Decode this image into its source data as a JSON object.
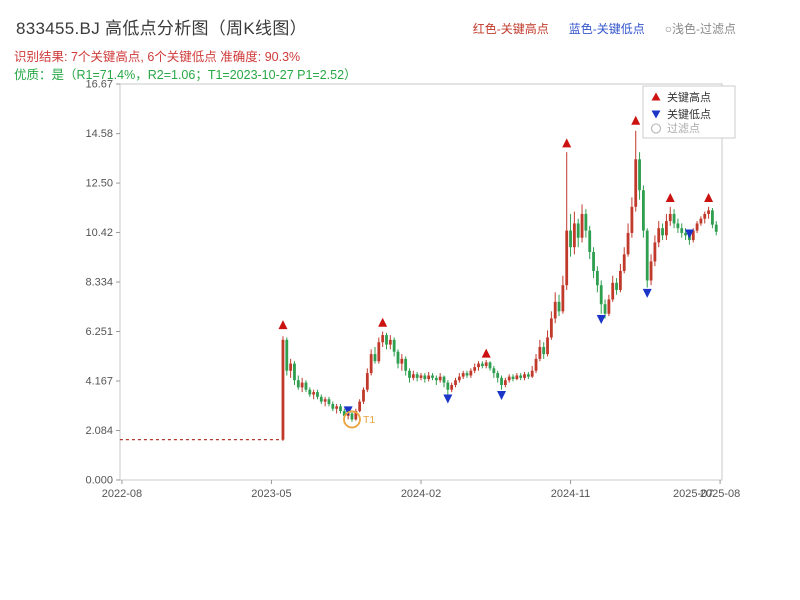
{
  "header": {
    "title": "833455.BJ 高低点分析图（周K线图）",
    "legend_top": [
      {
        "label": "红色-关键高点",
        "color": "#c0392b"
      },
      {
        "label": "蓝色-关键低点",
        "color": "#3355cc"
      },
      {
        "label": "○浅色-过滤点",
        "color": "#8a8a8a"
      }
    ],
    "result_line": "识别结果: 7个关键高点, 6个关键低点  准确度: 90.3%",
    "quality_line": "优质：是（R1=71.4%，R2=1.06；T1=2023-10-27 P1=2.52）"
  },
  "chart_data": {
    "type": "candlestick",
    "title": "833455.BJ 高低点分析图（周K线图）",
    "ylim": [
      0,
      16.67
    ],
    "grid": false,
    "legend_position": "top-right-inside",
    "y_ticks": [
      {
        "value": 0,
        "label": "0.000"
      },
      {
        "value": 2.084,
        "label": "2.084"
      },
      {
        "value": 4.167,
        "label": "4.167"
      },
      {
        "value": 6.251,
        "label": "6.251"
      },
      {
        "value": 8.334,
        "label": "8.334"
      },
      {
        "value": 10.42,
        "label": "10.42"
      },
      {
        "value": 12.5,
        "label": "12.50"
      },
      {
        "value": 14.58,
        "label": "14.58"
      },
      {
        "value": 16.67,
        "label": "16.67"
      }
    ],
    "x_ticks": [
      {
        "week": 0,
        "label": "2022-08",
        "tick": true
      },
      {
        "week": 39,
        "label": "2023-05",
        "tick": true
      },
      {
        "week": 78,
        "label": "2024-02",
        "tick": true
      },
      {
        "week": 117,
        "label": "2024-11",
        "tick": true
      },
      {
        "week": 149,
        "label": "2025-07",
        "tick": false
      },
      {
        "week": 156,
        "label": "2025-08",
        "tick": true
      }
    ],
    "flat_segment": {
      "from_week": 0,
      "to_week": 42,
      "value": 1.7
    },
    "candles": {
      "start_week": 42,
      "ohlc": [
        [
          1.7,
          6.05,
          1.65,
          5.9
        ],
        [
          5.9,
          6.0,
          4.4,
          4.6
        ],
        [
          4.6,
          5.1,
          4.3,
          4.9
        ],
        [
          4.9,
          5.0,
          4.0,
          4.2
        ],
        [
          4.2,
          4.4,
          3.8,
          3.9
        ],
        [
          3.9,
          4.3,
          3.7,
          4.1
        ],
        [
          4.1,
          4.2,
          3.7,
          3.8
        ],
        [
          3.8,
          3.9,
          3.5,
          3.6
        ],
        [
          3.6,
          3.8,
          3.4,
          3.7
        ],
        [
          3.7,
          3.8,
          3.4,
          3.5
        ],
        [
          3.5,
          3.6,
          3.2,
          3.3
        ],
        [
          3.3,
          3.5,
          3.1,
          3.4
        ],
        [
          3.4,
          3.5,
          3.1,
          3.2
        ],
        [
          3.2,
          3.3,
          2.9,
          3.0
        ],
        [
          3.0,
          3.2,
          2.8,
          3.1
        ],
        [
          3.1,
          3.2,
          2.8,
          2.9
        ],
        [
          2.9,
          3.0,
          2.6,
          2.7
        ],
        [
          2.7,
          2.9,
          2.55,
          2.8
        ],
        [
          2.8,
          2.85,
          2.45,
          2.55
        ],
        [
          2.55,
          3.0,
          2.5,
          2.9
        ],
        [
          2.9,
          3.4,
          2.85,
          3.3
        ],
        [
          3.3,
          3.9,
          3.2,
          3.8
        ],
        [
          3.8,
          4.7,
          3.7,
          4.5
        ],
        [
          4.5,
          5.5,
          4.4,
          5.3
        ],
        [
          5.3,
          5.6,
          4.9,
          5.0
        ],
        [
          5.0,
          6.0,
          4.9,
          5.8
        ],
        [
          5.8,
          6.25,
          5.6,
          6.1
        ],
        [
          6.1,
          6.2,
          5.5,
          5.7
        ],
        [
          5.7,
          6.1,
          5.5,
          5.9
        ],
        [
          5.9,
          6.0,
          5.2,
          5.4
        ],
        [
          5.4,
          5.5,
          4.7,
          4.9
        ],
        [
          4.9,
          5.3,
          4.6,
          5.1
        ],
        [
          5.1,
          5.2,
          4.4,
          4.6
        ],
        [
          4.6,
          4.7,
          4.1,
          4.3
        ],
        [
          4.3,
          4.6,
          4.2,
          4.45
        ],
        [
          4.45,
          4.55,
          4.15,
          4.3
        ],
        [
          4.3,
          4.5,
          4.2,
          4.4
        ],
        [
          4.4,
          4.5,
          4.1,
          4.25
        ],
        [
          4.25,
          4.55,
          4.15,
          4.4
        ],
        [
          4.4,
          4.5,
          4.2,
          4.3
        ],
        [
          4.3,
          4.4,
          4.0,
          4.2
        ],
        [
          4.2,
          4.5,
          4.1,
          4.35
        ],
        [
          4.35,
          4.4,
          3.9,
          4.1
        ],
        [
          4.1,
          4.2,
          3.6,
          3.8
        ],
        [
          3.8,
          4.1,
          3.7,
          4.0
        ],
        [
          4.0,
          4.3,
          3.9,
          4.2
        ],
        [
          4.2,
          4.5,
          4.1,
          4.35
        ],
        [
          4.35,
          4.6,
          4.25,
          4.5
        ],
        [
          4.5,
          4.6,
          4.3,
          4.4
        ],
        [
          4.4,
          4.7,
          4.3,
          4.6
        ],
        [
          4.6,
          4.9,
          4.5,
          4.75
        ],
        [
          4.75,
          5.0,
          4.6,
          4.9
        ],
        [
          4.9,
          5.0,
          4.7,
          4.8
        ],
        [
          4.8,
          5.05,
          4.7,
          4.95
        ],
        [
          4.95,
          5.0,
          4.6,
          4.7
        ],
        [
          4.7,
          4.8,
          4.3,
          4.5
        ],
        [
          4.5,
          4.6,
          4.1,
          4.3
        ],
        [
          4.3,
          4.4,
          3.8,
          4.0
        ],
        [
          4.0,
          4.3,
          3.9,
          4.2
        ],
        [
          4.2,
          4.45,
          4.1,
          4.35
        ],
        [
          4.35,
          4.45,
          4.15,
          4.25
        ],
        [
          4.25,
          4.5,
          4.2,
          4.4
        ],
        [
          4.4,
          4.5,
          4.2,
          4.3
        ],
        [
          4.3,
          4.55,
          4.2,
          4.45
        ],
        [
          4.45,
          4.55,
          4.25,
          4.35
        ],
        [
          4.35,
          4.8,
          4.3,
          4.6
        ],
        [
          4.6,
          5.3,
          4.5,
          5.1
        ],
        [
          5.1,
          5.9,
          5.0,
          5.6
        ],
        [
          5.6,
          5.8,
          5.1,
          5.3
        ],
        [
          5.3,
          6.3,
          5.2,
          6.0
        ],
        [
          6.0,
          7.1,
          5.9,
          6.8
        ],
        [
          6.8,
          7.9,
          6.6,
          7.5
        ],
        [
          7.5,
          7.8,
          6.9,
          7.1
        ],
        [
          7.1,
          8.6,
          7.0,
          8.2
        ],
        [
          8.2,
          13.8,
          8.0,
          10.5
        ],
        [
          10.5,
          11.2,
          9.4,
          9.8
        ],
        [
          9.8,
          11.3,
          9.5,
          10.8
        ],
        [
          10.8,
          11.0,
          9.8,
          10.2
        ],
        [
          10.2,
          11.6,
          10.0,
          11.2
        ],
        [
          11.2,
          11.4,
          10.2,
          10.5
        ],
        [
          10.5,
          10.7,
          9.3,
          9.6
        ],
        [
          9.6,
          9.8,
          8.5,
          8.8
        ],
        [
          8.8,
          9.0,
          7.9,
          8.2
        ],
        [
          8.2,
          8.4,
          7.0,
          7.4
        ],
        [
          7.4,
          7.6,
          6.8,
          7.0
        ],
        [
          7.0,
          7.8,
          6.9,
          7.6
        ],
        [
          7.6,
          8.6,
          7.5,
          8.3
        ],
        [
          8.3,
          8.5,
          7.8,
          8.0
        ],
        [
          8.0,
          9.1,
          7.9,
          8.8
        ],
        [
          8.8,
          9.8,
          8.7,
          9.5
        ],
        [
          9.5,
          10.8,
          9.4,
          10.4
        ],
        [
          10.4,
          11.9,
          10.2,
          11.5
        ],
        [
          11.5,
          14.7,
          11.3,
          13.5
        ],
        [
          13.5,
          13.8,
          11.8,
          12.2
        ],
        [
          12.2,
          12.4,
          10.2,
          10.5
        ],
        [
          10.5,
          10.6,
          8.1,
          8.4
        ],
        [
          8.4,
          9.5,
          8.2,
          9.2
        ],
        [
          9.2,
          10.3,
          9.0,
          10.0
        ],
        [
          10.0,
          10.9,
          9.8,
          10.6
        ],
        [
          10.6,
          10.8,
          10.1,
          10.3
        ],
        [
          10.3,
          11.2,
          10.1,
          10.9
        ],
        [
          10.9,
          11.5,
          10.7,
          11.2
        ],
        [
          11.2,
          11.4,
          10.6,
          10.8
        ],
        [
          10.8,
          11.0,
          10.4,
          10.6
        ],
        [
          10.6,
          10.8,
          10.2,
          10.4
        ],
        [
          10.4,
          10.6,
          10.1,
          10.3
        ],
        [
          10.3,
          10.5,
          9.9,
          10.1
        ],
        [
          10.1,
          10.6,
          10.0,
          10.5
        ],
        [
          10.5,
          10.9,
          10.4,
          10.8
        ],
        [
          10.8,
          11.1,
          10.7,
          11.0
        ],
        [
          11.0,
          11.3,
          10.8,
          11.2
        ],
        [
          11.2,
          11.5,
          11.0,
          11.35
        ],
        [
          11.35,
          11.45,
          10.6,
          10.75
        ],
        [
          10.75,
          10.9,
          10.3,
          10.45
        ]
      ]
    },
    "key_highs": [
      {
        "week": 42,
        "value": 6.5
      },
      {
        "week": 68,
        "value": 6.6
      },
      {
        "week": 95,
        "value": 5.3
      },
      {
        "week": 116,
        "value": 14.15
      },
      {
        "week": 134,
        "value": 15.1
      },
      {
        "week": 143,
        "value": 11.85
      },
      {
        "week": 153,
        "value": 11.85
      }
    ],
    "key_lows": [
      {
        "week": 59,
        "value": 2.95
      },
      {
        "week": 85,
        "value": 3.45
      },
      {
        "week": 99,
        "value": 3.6
      },
      {
        "week": 125,
        "value": 6.8
      },
      {
        "week": 137,
        "value": 7.9
      },
      {
        "week": 148,
        "value": 10.4
      }
    ],
    "filter_points": [
      {
        "week": 60,
        "value": 2.55,
        "label": "T1"
      }
    ],
    "legend": [
      {
        "label": "关键高点",
        "marker": "triangle-up",
        "color": "#cc1111"
      },
      {
        "label": "关键低点",
        "marker": "triangle-down",
        "color": "#1a35c8"
      },
      {
        "label": "过滤点",
        "marker": "circle",
        "color": "#bfbfbf"
      }
    ],
    "colors": {
      "up": "#c0392b",
      "down": "#2e9e4f",
      "flat_line": "#b03a2e",
      "filter": "#e8a33d",
      "axis": "#c8c8c8",
      "tick": "#999999"
    }
  }
}
